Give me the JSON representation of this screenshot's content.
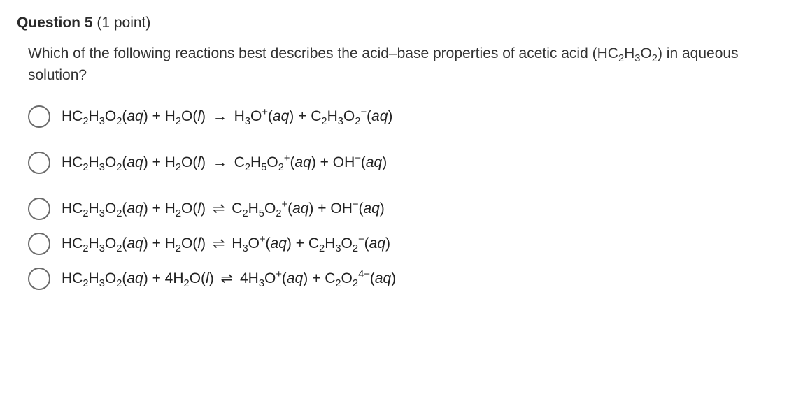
{
  "header": {
    "question_label": "Question 5",
    "points_label": " (1 point)"
  },
  "question": {
    "prefix": "Which of the following reactions best describes the acid–base properties of acetic acid (HC",
    "sub1": "2",
    "mid1": "H",
    "sub2": "3",
    "mid2": "O",
    "sub3": "2",
    "suffix": ") in aqueous solution?"
  },
  "options": [
    {
      "lhs_pre": "HC",
      "lhs_s1": "2",
      "lhs_m1": "H",
      "lhs_s2": "3",
      "lhs_m2": "O",
      "lhs_s3": "2",
      "lhs_state1_open": "(",
      "lhs_state1": "aq",
      "lhs_state1_close": ")",
      "plus1": " + H",
      "r2_s1": "2",
      "r2_m1": "O(",
      "r2_state": "l",
      "r2_close": ") ",
      "arrow": "→",
      "rhs_pre": " H",
      "rhs_s1": "3",
      "rhs_m1": "O",
      "rhs_sup1": "+",
      "rhs_state_open": "(",
      "rhs_state": "aq",
      "rhs_state_close": ")",
      "plus2": " + C",
      "p2_s1": "2",
      "p2_m1": "H",
      "p2_s2": "3",
      "p2_m2": "O",
      "p2_s3": "2",
      "p2_sup": "−",
      "p2_state_open": "(",
      "p2_state": "aq",
      "p2_state_close": ")",
      "tight": false
    },
    {
      "lhs_pre": "HC",
      "lhs_s1": "2",
      "lhs_m1": "H",
      "lhs_s2": "3",
      "lhs_m2": "O",
      "lhs_s3": "2",
      "lhs_state1_open": "(",
      "lhs_state1": "aq",
      "lhs_state1_close": ")",
      "plus1": " + H",
      "r2_s1": "2",
      "r2_m1": "O(",
      "r2_state": "l",
      "r2_close": ") ",
      "arrow": "→",
      "rhs_pre": " C",
      "rhs_s1": "2",
      "rhs_m1": "H",
      "rhs_s2_extra": "5",
      "rhs_m2_extra": "O",
      "rhs_s3_extra": "2",
      "rhs_sup1": "+",
      "rhs_state_open": "(",
      "rhs_state": "aq",
      "rhs_state_close": ")",
      "plus2": " + OH",
      "p2_sup": "−",
      "p2_state_open": "(",
      "p2_state": "aq",
      "p2_state_close": ")",
      "tight": false
    },
    {
      "lhs_pre": "HC",
      "lhs_s1": "2",
      "lhs_m1": "H",
      "lhs_s2": "3",
      "lhs_m2": "O",
      "lhs_s3": "2",
      "lhs_state1_open": "(",
      "lhs_state1": "aq",
      "lhs_state1_close": ")",
      "plus1": " + H",
      "r2_s1": "2",
      "r2_m1": "O(",
      "r2_state": "l",
      "r2_close": ") ",
      "arrow": "⇌",
      "rhs_pre": " C",
      "rhs_s1": "2",
      "rhs_m1": "H",
      "rhs_s2_extra": "5",
      "rhs_m2_extra": "O",
      "rhs_s3_extra": "2",
      "rhs_sup1": "+",
      "rhs_state_open": "(",
      "rhs_state": "aq",
      "rhs_state_close": ")",
      "plus2": " + OH",
      "p2_sup": "−",
      "p2_state_open": "(",
      "p2_state": "aq",
      "p2_state_close": ")",
      "tight": true
    },
    {
      "lhs_pre": "HC",
      "lhs_s1": "2",
      "lhs_m1": "H",
      "lhs_s2": "3",
      "lhs_m2": "O",
      "lhs_s3": "2",
      "lhs_state1_open": "(",
      "lhs_state1": "aq",
      "lhs_state1_close": ")",
      "plus1": " + H",
      "r2_s1": "2",
      "r2_m1": "O(",
      "r2_state": "l",
      "r2_close": ") ",
      "arrow": "⇌",
      "rhs_pre": " H",
      "rhs_s1": "3",
      "rhs_m1": "O",
      "rhs_sup1": "+",
      "rhs_state_open": "(",
      "rhs_state": "aq",
      "rhs_state_close": ")",
      "plus2": " + C",
      "p2_s1": "2",
      "p2_m1": "H",
      "p2_s2": "3",
      "p2_m2": "O",
      "p2_s3": "2",
      "p2_sup": "−",
      "p2_state_open": "(",
      "p2_state": "aq",
      "p2_state_close": ")",
      "tight": true
    },
    {
      "lhs_pre": "HC",
      "lhs_s1": "2",
      "lhs_m1": "H",
      "lhs_s2": "3",
      "lhs_m2": "O",
      "lhs_s3": "2",
      "lhs_state1_open": "(",
      "lhs_state1": "aq",
      "lhs_state1_close": ")",
      "plus1": " + 4H",
      "r2_s1": "2",
      "r2_m1": "O(",
      "r2_state": "l",
      "r2_close": ") ",
      "arrow": "⇌",
      "rhs_pre": " 4H",
      "rhs_s1": "3",
      "rhs_m1": "O",
      "rhs_sup1": "+",
      "rhs_state_open": "(",
      "rhs_state": "aq",
      "rhs_state_close": ")",
      "plus2": " + C",
      "p2_s1": "2",
      "p2_m2": "O",
      "p2_s3": "2",
      "p2_sup": "4−",
      "p2_state_open": "(",
      "p2_state": "aq",
      "p2_state_close": ")",
      "tight": false
    }
  ]
}
